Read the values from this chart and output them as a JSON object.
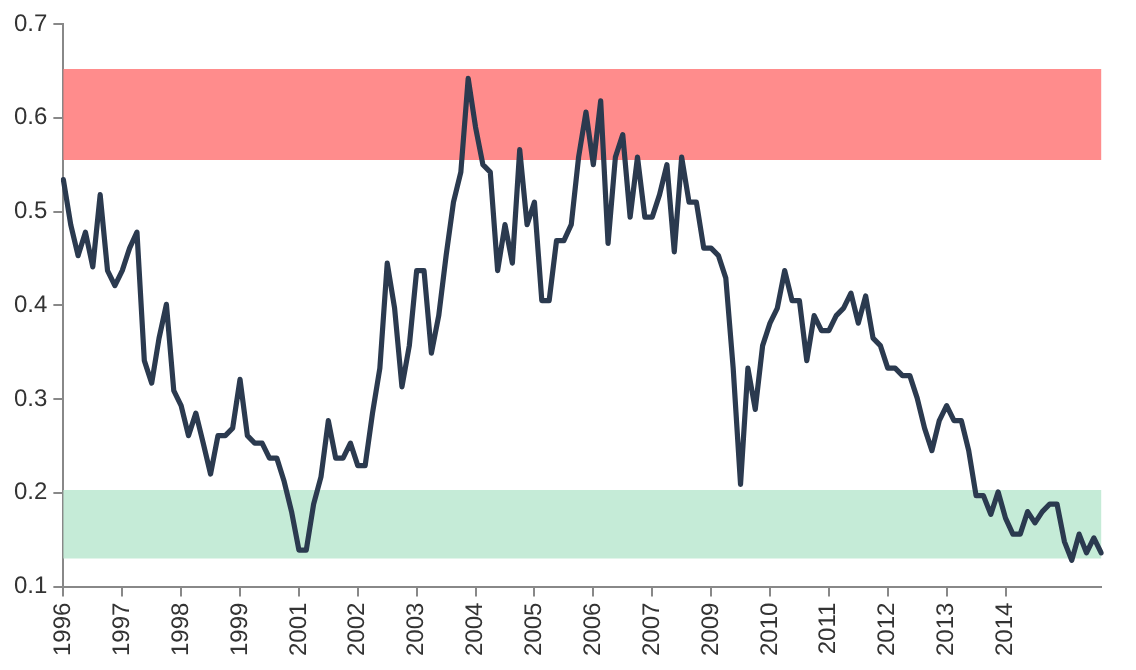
{
  "chart_data": {
    "type": "line",
    "categories": [
      "1996",
      null,
      null,
      null,
      null,
      null,
      null,
      null,
      "1997",
      null,
      null,
      null,
      null,
      null,
      null,
      null,
      "1998",
      null,
      null,
      null,
      null,
      null,
      null,
      null,
      "1999",
      null,
      null,
      null,
      null,
      null,
      null,
      null,
      "2001",
      null,
      null,
      null,
      null,
      null,
      null,
      null,
      "2002",
      null,
      null,
      null,
      null,
      null,
      null,
      null,
      "2003",
      null,
      null,
      null,
      null,
      null,
      null,
      null,
      "2004",
      null,
      null,
      null,
      null,
      null,
      null,
      null,
      "2005",
      null,
      null,
      null,
      null,
      null,
      null,
      null,
      "2006",
      null,
      null,
      null,
      null,
      null,
      null,
      null,
      "2007",
      null,
      null,
      null,
      null,
      null,
      null,
      null,
      "2009",
      null,
      null,
      null,
      null,
      null,
      null,
      null,
      "2010",
      null,
      null,
      null,
      null,
      null,
      null,
      null,
      "2011",
      null,
      null,
      null,
      null,
      null,
      null,
      null,
      "2012",
      null,
      null,
      null,
      null,
      null,
      null,
      null,
      "2013",
      null,
      null,
      null,
      null,
      null,
      null,
      null,
      "2014",
      null,
      null,
      null,
      null,
      null,
      null,
      null,
      null,
      null,
      null,
      null,
      null,
      null
    ],
    "ylim": [
      0.1,
      0.7
    ],
    "yticks": [
      0.1,
      0.2,
      0.3,
      0.4,
      0.5,
      0.6,
      0.7
    ],
    "grid": false,
    "legend": false,
    "marker": "none",
    "line_style": "solid",
    "series": [
      {
        "color": "#2b3a4f",
        "values": [
          0.534,
          0.486,
          0.453,
          0.478,
          0.441,
          0.518,
          0.437,
          0.421,
          0.437,
          0.461,
          0.478,
          0.341,
          0.317,
          0.365,
          0.401,
          0.309,
          0.293,
          0.261,
          0.285,
          0.253,
          0.22,
          0.261,
          0.261,
          0.269,
          0.321,
          0.261,
          0.253,
          0.253,
          0.237,
          0.237,
          0.212,
          0.18,
          0.139,
          0.139,
          0.188,
          0.217,
          0.277,
          0.237,
          0.237,
          0.253,
          0.229,
          0.229,
          0.285,
          0.333,
          0.445,
          0.397,
          0.313,
          0.357,
          0.437,
          0.437,
          0.349,
          0.389,
          0.453,
          0.51,
          0.542,
          0.642,
          0.59,
          0.55,
          0.542,
          0.437,
          0.486,
          0.445,
          0.566,
          0.486,
          0.51,
          0.405,
          0.405,
          0.469,
          0.469,
          0.486,
          0.558,
          0.606,
          0.55,
          0.618,
          0.466,
          0.558,
          0.582,
          0.494,
          0.558,
          0.494,
          0.494,
          0.518,
          0.55,
          0.457,
          0.558,
          0.51,
          0.51,
          0.461,
          0.461,
          0.453,
          0.429,
          0.333,
          0.209,
          0.333,
          0.289,
          0.357,
          0.381,
          0.397,
          0.437,
          0.405,
          0.405,
          0.341,
          0.389,
          0.373,
          0.373,
          0.389,
          0.397,
          0.413,
          0.381,
          0.41,
          0.365,
          0.357,
          0.333,
          0.333,
          0.325,
          0.325,
          0.301,
          0.269,
          0.245,
          0.277,
          0.293,
          0.277,
          0.277,
          0.245,
          0.197,
          0.197,
          0.177,
          0.201,
          0.173,
          0.156,
          0.156,
          0.18,
          0.168,
          0.18,
          0.188,
          0.188,
          0.148,
          0.128,
          0.156,
          0.136,
          0.152,
          0.136
        ]
      }
    ],
    "bands": [
      {
        "axis": "y",
        "from": 0.555,
        "to": 0.652,
        "color": "#ff7f7f"
      },
      {
        "axis": "y",
        "from": 0.13,
        "to": 0.203,
        "color": "#bfe9d3"
      }
    ]
  }
}
